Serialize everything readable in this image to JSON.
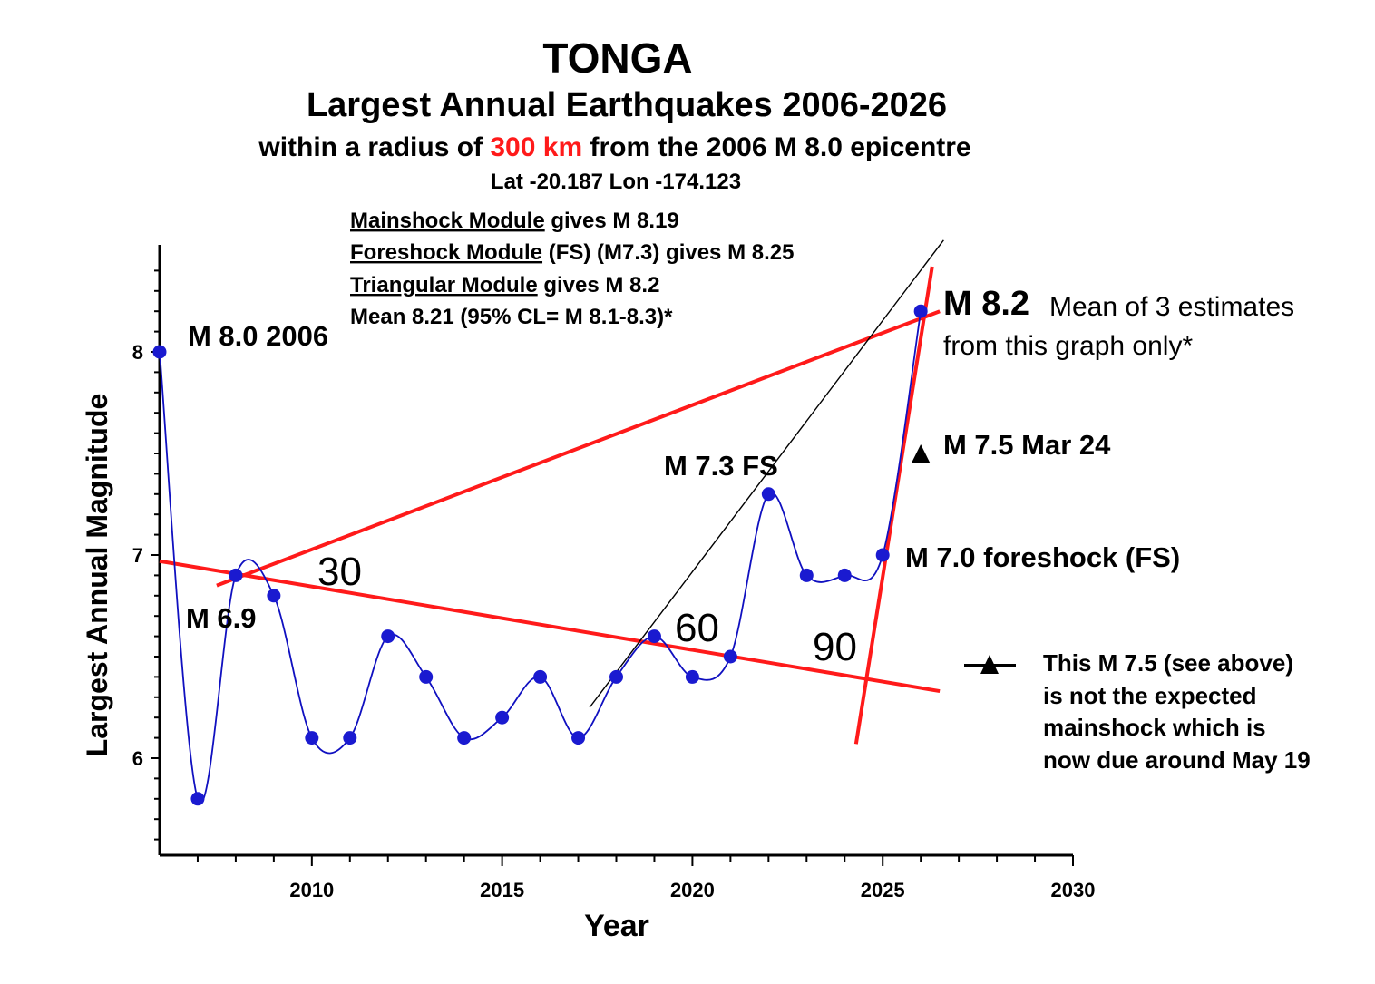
{
  "chart_data": {
    "type": "line",
    "title": "TONGA",
    "subtitle": "Largest Annual Earthquakes 2006-2026",
    "subtitle2_parts": [
      "within a radius of ",
      "300 km",
      " from the 2006 M 8.0 epicentre"
    ],
    "subtitle3": "Lat -20.187 Lon -174.123",
    "xlabel": "Year",
    "ylabel": "Largest Annual Magnitude",
    "xlim": [
      2006,
      2030
    ],
    "ylim": [
      5.5,
      8.5
    ],
    "xticks": [
      2010,
      2015,
      2020,
      2025,
      2030
    ],
    "yticks": [
      6,
      7,
      8
    ],
    "series": [
      {
        "x": [
          2006,
          2007,
          2008,
          2009,
          2010,
          2011,
          2012,
          2013,
          2014,
          2015,
          2016,
          2017,
          2018,
          2019,
          2020,
          2021,
          2022,
          2023,
          2024,
          2025,
          2026
        ],
        "y": [
          8.0,
          5.8,
          6.9,
          6.8,
          6.1,
          6.1,
          6.6,
          6.4,
          6.1,
          6.2,
          6.4,
          6.1,
          6.4,
          6.6,
          6.4,
          6.5,
          7.3,
          6.9,
          6.9,
          7.0,
          8.2
        ],
        "color": "#1010c0"
      }
    ],
    "marker_triangle": {
      "x": 2026,
      "y": 7.5
    },
    "trend_lines": [
      {
        "from": [
          2007.5,
          6.85
        ],
        "to": [
          2026.5,
          8.2
        ],
        "color": "#ff1a1a"
      },
      {
        "from": [
          2006,
          6.97
        ],
        "to": [
          2026.5,
          6.33
        ],
        "color": "#ff1a1a"
      },
      {
        "from": [
          2024.3,
          6.07
        ],
        "to": [
          2026.3,
          8.42
        ],
        "color": "#ff1a1a"
      },
      {
        "from": [
          2017.3,
          6.25
        ],
        "to": [
          2026.6,
          8.55
        ],
        "color": "#000000"
      }
    ],
    "modules": [
      {
        "name": "Mainshock Module",
        "text": " gives M 8.19"
      },
      {
        "name": "Foreshock Module",
        "text": " (FS) (M7.3) gives M 8.25"
      },
      {
        "name": "Triangular Module",
        "text": "  gives M 8.2"
      }
    ],
    "mean_text": "Mean 8.21 (95% CL= M 8.1-8.3)*",
    "annotations": {
      "m80": "M 8.0 2006",
      "m69": "M 6.9",
      "m73": "M 7.3 FS",
      "m70": "M 7.0 foreshock (FS)",
      "m75": "M 7.5 Mar 24",
      "m82": "M 8.2",
      "m82_desc1": "Mean of 3 estimates",
      "m82_desc2": "from this graph only*",
      "angle30": "30",
      "angle60": "60",
      "angle90": "90"
    },
    "note_lines": [
      "This M 7.5 (see above)",
      "is not the expected",
      "mainshock which is",
      "now due around May 19"
    ],
    "colors": {
      "line": "#1010c0",
      "point": "#1a1ad0",
      "trend": "#ff1a1a",
      "highlight": "#ff1a1a",
      "text": "#000000"
    }
  }
}
